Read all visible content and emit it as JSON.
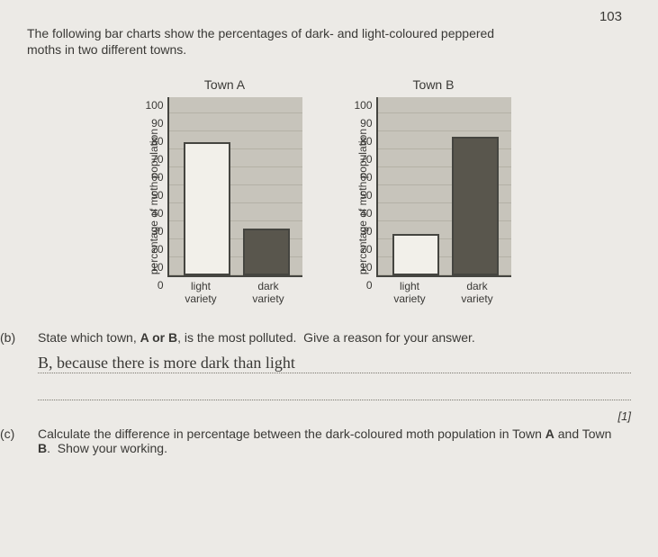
{
  "page_number": "103",
  "intro": "The following bar charts show the percentages of dark- and light-coloured peppered moths in two different towns.",
  "axis": {
    "ylabel": "percentage of moth population",
    "ylim": [
      0,
      100
    ],
    "ytick_step": 10,
    "grid_step_pct": 10,
    "xcats": [
      "light\nvariety",
      "dark\nvariety"
    ],
    "yticks": [
      "100",
      "90",
      "80",
      "70",
      "60",
      "50",
      "40",
      "30",
      "20",
      "10",
      "0"
    ]
  },
  "charts": [
    {
      "title": "Town A",
      "type": "bar",
      "bars": [
        {
          "label": "light variety",
          "value": 74,
          "fill": "#f2f0ea",
          "cls": "bar-light"
        },
        {
          "label": "dark variety",
          "value": 26,
          "fill": "#59564d",
          "cls": "bar-dark"
        }
      ],
      "bar_border": "#454540",
      "background": "#c7c4bb",
      "grid_color": "#b4b1a6"
    },
    {
      "title": "Town B",
      "type": "bar",
      "bars": [
        {
          "label": "light variety",
          "value": 23,
          "fill": "#f2f0ea",
          "cls": "bar-light"
        },
        {
          "label": "dark variety",
          "value": 77,
          "fill": "#59564d",
          "cls": "bar-dark"
        }
      ],
      "bar_border": "#454540",
      "background": "#c7c4bb",
      "grid_color": "#b4b1a6"
    }
  ],
  "questions": {
    "b": {
      "label": "(b)",
      "text": "State which town, A or B, is the most polluted.  Give a reason for your answer.",
      "handwritten": "B, because there is more dark than light",
      "marks": "[1]"
    },
    "c": {
      "label": "(c)",
      "text": "Calculate the difference in percentage between the dark-coloured moth population in Town A and Town B.  Show your working."
    }
  },
  "bold": {
    "A": "A",
    "B": "B",
    "AB": "A or B"
  }
}
